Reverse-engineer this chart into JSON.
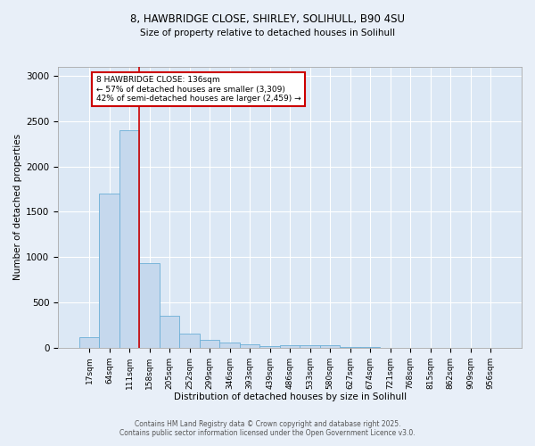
{
  "title_line1": "8, HAWBRIDGE CLOSE, SHIRLEY, SOLIHULL, B90 4SU",
  "title_line2": "Size of property relative to detached houses in Solihull",
  "xlabel": "Distribution of detached houses by size in Solihull",
  "ylabel": "Number of detached properties",
  "categories": [
    "17sqm",
    "64sqm",
    "111sqm",
    "158sqm",
    "205sqm",
    "252sqm",
    "299sqm",
    "346sqm",
    "393sqm",
    "439sqm",
    "486sqm",
    "533sqm",
    "580sqm",
    "627sqm",
    "674sqm",
    "721sqm",
    "768sqm",
    "815sqm",
    "862sqm",
    "909sqm",
    "956sqm"
  ],
  "values": [
    120,
    1700,
    2400,
    930,
    350,
    155,
    85,
    55,
    40,
    15,
    30,
    25,
    30,
    5,
    3,
    2,
    2,
    1,
    1,
    1,
    1
  ],
  "bar_color": "#c5d8ed",
  "bar_edge_color": "#6baed6",
  "red_line_x": 2.5,
  "red_line_color": "#cc0000",
  "annotation_box_text": "8 HAWBRIDGE CLOSE: 136sqm\n← 57% of detached houses are smaller (3,309)\n42% of semi-detached houses are larger (2,459) →",
  "annotation_box_color": "#cc0000",
  "annotation_box_bg": "#ffffff",
  "ylim": [
    0,
    3100
  ],
  "yticks": [
    0,
    500,
    1000,
    1500,
    2000,
    2500,
    3000
  ],
  "footnote_line1": "Contains HM Land Registry data © Crown copyright and database right 2025.",
  "footnote_line2": "Contains public sector information licensed under the Open Government Licence v3.0.",
  "bg_color": "#e8eff8",
  "plot_bg_color": "#dce8f5",
  "grid_color": "#ffffff"
}
